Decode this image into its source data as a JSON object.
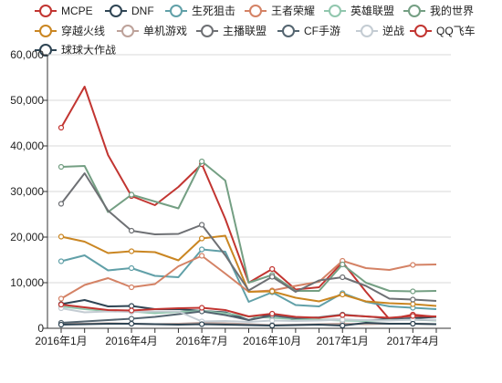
{
  "chart_data": {
    "type": "line",
    "title": "",
    "xlabel": "",
    "ylabel": "",
    "ylim": [
      0,
      60000
    ],
    "grid": true,
    "legend_placement": "top",
    "x_tick_labels": [
      "2016年1月",
      "2016年4月",
      "2016年7月",
      "2016年10月",
      "2017年1月",
      "2017年4月"
    ],
    "y_tick_labels": [
      "0",
      "10,000",
      "20,000",
      "30,000",
      "40,000",
      "50,000",
      "60,000"
    ],
    "categories": [
      "2016-01",
      "2016-02",
      "2016-03",
      "2016-04",
      "2016-05",
      "2016-06",
      "2016-07",
      "2016-08",
      "2016-09",
      "2016-10",
      "2016-11",
      "2016-12",
      "2017-01",
      "2017-02",
      "2017-03",
      "2017-04",
      "2017-05"
    ],
    "series": [
      {
        "name": "MCPE",
        "color": "#c23531",
        "values": [
          44000,
          53000,
          38000,
          29000,
          27000,
          31000,
          36000,
          24000,
          10000,
          13000,
          8500,
          9000,
          14500,
          8000,
          2000,
          3000,
          2500
        ]
      },
      {
        "name": "DNF",
        "color": "#2f4554",
        "values": [
          5300,
          6200,
          4800,
          4900,
          4200,
          4200,
          3800,
          3500,
          1800,
          3100,
          1800,
          1800,
          1900,
          1700,
          2000,
          2200,
          2500
        ]
      },
      {
        "name": "生死狙击",
        "color": "#61a0a8",
        "values": [
          14700,
          16000,
          12700,
          13200,
          11500,
          11200,
          17300,
          16800,
          5800,
          7900,
          5100,
          4800,
          7700,
          5800,
          4800,
          4500,
          4200
        ]
      },
      {
        "name": "王者荣耀",
        "color": "#d48265",
        "values": [
          6500,
          9500,
          11000,
          9000,
          9700,
          13600,
          15900,
          12000,
          8000,
          8300,
          9300,
          10200,
          14800,
          13200,
          12800,
          13900,
          14000
        ]
      },
      {
        "name": "英雄联盟",
        "color": "#91c7ae",
        "values": [
          4800,
          4200,
          3800,
          3700,
          3300,
          3600,
          3800,
          3300,
          2600,
          2300,
          2000,
          1900,
          1700,
          1600,
          1800,
          1900,
          1700
        ]
      },
      {
        "name": "我的世界",
        "color": "#749f83",
        "values": [
          35400,
          35600,
          25500,
          29300,
          27800,
          26300,
          36600,
          32400,
          10000,
          11700,
          8200,
          8200,
          14000,
          10000,
          8200,
          8100,
          8200
        ]
      },
      {
        "name": "穿越火线",
        "color": "#ca8622",
        "values": [
          20100,
          19000,
          16500,
          16900,
          16700,
          14900,
          19700,
          20300,
          8000,
          8100,
          6700,
          5900,
          7400,
          5900,
          5500,
          5300,
          4900
        ]
      },
      {
        "name": "单机游戏",
        "color": "#bda29a",
        "values": [
          1100,
          1000,
          1100,
          1000,
          900,
          1000,
          1200,
          1100,
          900,
          700,
          800,
          900,
          1000,
          900,
          1000,
          1000,
          900
        ]
      },
      {
        "name": "主播联盟",
        "color": "#6e7074",
        "values": [
          27300,
          34000,
          25800,
          21400,
          20600,
          20700,
          22700,
          16000,
          8300,
          11300,
          8000,
          10500,
          11200,
          9300,
          6500,
          6300,
          6000
        ]
      },
      {
        "name": "CF手游",
        "color": "#546570",
        "values": [
          1200,
          1500,
          1800,
          2100,
          2500,
          3100,
          3700,
          2900,
          1800,
          2800,
          2200,
          2400,
          3000,
          2600,
          2200,
          1900,
          1800
        ]
      },
      {
        "name": "逆战",
        "color": "#c4ccd3",
        "values": [
          4400,
          3500,
          3700,
          3600,
          3700,
          3700,
          1500,
          1600,
          1400,
          1700,
          1600,
          1700,
          1900,
          1800,
          1700,
          1900,
          1800
        ]
      },
      {
        "name": "QQ飞车",
        "color": "#c23531",
        "values": [
          5200,
          4600,
          4000,
          3900,
          4200,
          4400,
          4500,
          4000,
          2600,
          3200,
          2500,
          2300,
          2900,
          2600,
          2300,
          2700,
          2600
        ]
      },
      {
        "name": "球球大作战",
        "color": "#2f4554",
        "values": [
          800,
          900,
          1000,
          1000,
          900,
          800,
          900,
          800,
          700,
          600,
          700,
          800,
          600,
          1200,
          1000,
          1000,
          900
        ]
      }
    ]
  }
}
